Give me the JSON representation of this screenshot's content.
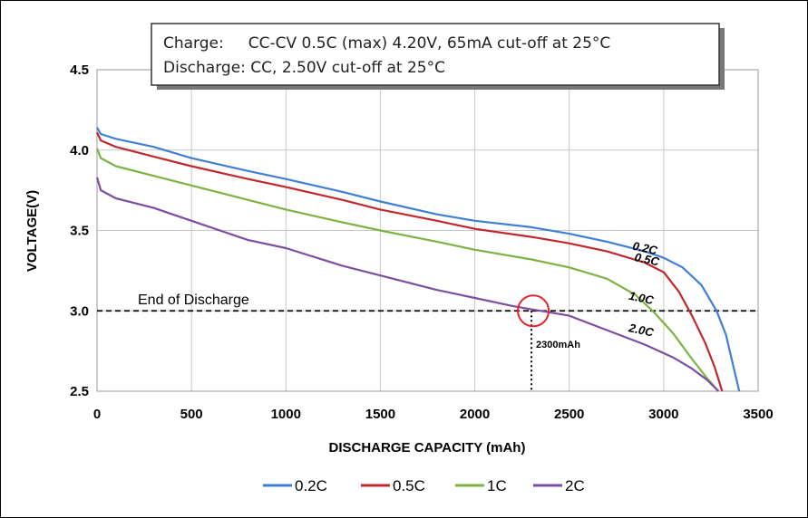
{
  "info_box": {
    "line1": "Charge:     CC-CV 0.5C (max) 4.20V, 65mA cut-off at 25°C",
    "line2": "Discharge: CC, 2.50V cut-off at 25°C"
  },
  "chart_data": {
    "type": "line",
    "xlabel": "DISCHARGE CAPACITY (mAh)",
    "ylabel": "VOLTAGE(V)",
    "xlim": [
      0,
      3500
    ],
    "ylim": [
      2.5,
      4.5
    ],
    "xticks": [
      "0",
      "500",
      "1000",
      "1500",
      "2000",
      "2500",
      "3000",
      "3500"
    ],
    "yticks": [
      "2.5",
      "3.0",
      "3.5",
      "4.0",
      "4.5"
    ],
    "grid": true,
    "legend_position": "bottom",
    "series": [
      {
        "name": "0.2C",
        "curve_label": "0.2C",
        "color": "#3f7fd4",
        "points": [
          [
            0,
            4.14
          ],
          [
            20,
            4.1
          ],
          [
            100,
            4.07
          ],
          [
            300,
            4.02
          ],
          [
            500,
            3.95
          ],
          [
            800,
            3.87
          ],
          [
            1000,
            3.82
          ],
          [
            1300,
            3.74
          ],
          [
            1500,
            3.68
          ],
          [
            1800,
            3.6
          ],
          [
            2000,
            3.56
          ],
          [
            2300,
            3.52
          ],
          [
            2500,
            3.48
          ],
          [
            2700,
            3.43
          ],
          [
            2900,
            3.37
          ],
          [
            3000,
            3.33
          ],
          [
            3100,
            3.27
          ],
          [
            3200,
            3.16
          ],
          [
            3280,
            3.0
          ],
          [
            3330,
            2.85
          ],
          [
            3370,
            2.65
          ],
          [
            3400,
            2.5
          ]
        ]
      },
      {
        "name": "0.5C",
        "curve_label": "0.5C",
        "color": "#c0282e",
        "points": [
          [
            0,
            4.11
          ],
          [
            20,
            4.06
          ],
          [
            100,
            4.02
          ],
          [
            300,
            3.96
          ],
          [
            500,
            3.9
          ],
          [
            800,
            3.82
          ],
          [
            1000,
            3.77
          ],
          [
            1300,
            3.69
          ],
          [
            1500,
            3.63
          ],
          [
            1800,
            3.56
          ],
          [
            2000,
            3.51
          ],
          [
            2300,
            3.46
          ],
          [
            2500,
            3.42
          ],
          [
            2700,
            3.37
          ],
          [
            2900,
            3.3
          ],
          [
            3000,
            3.24
          ],
          [
            3080,
            3.12
          ],
          [
            3150,
            2.97
          ],
          [
            3220,
            2.8
          ],
          [
            3270,
            2.65
          ],
          [
            3310,
            2.5
          ]
        ]
      },
      {
        "name": "1C",
        "curve_label": "1.0C",
        "color": "#7cb342",
        "points": [
          [
            0,
            4.01
          ],
          [
            20,
            3.95
          ],
          [
            100,
            3.9
          ],
          [
            300,
            3.84
          ],
          [
            500,
            3.78
          ],
          [
            800,
            3.69
          ],
          [
            1000,
            3.63
          ],
          [
            1300,
            3.55
          ],
          [
            1500,
            3.5
          ],
          [
            1800,
            3.43
          ],
          [
            2000,
            3.38
          ],
          [
            2300,
            3.32
          ],
          [
            2500,
            3.27
          ],
          [
            2700,
            3.2
          ],
          [
            2850,
            3.1
          ],
          [
            2950,
            2.99
          ],
          [
            3050,
            2.86
          ],
          [
            3150,
            2.7
          ],
          [
            3230,
            2.58
          ],
          [
            3290,
            2.5
          ]
        ]
      },
      {
        "name": "2C",
        "curve_label": "2.0C",
        "color": "#7e4ea0",
        "points": [
          [
            0,
            3.83
          ],
          [
            20,
            3.75
          ],
          [
            100,
            3.7
          ],
          [
            300,
            3.64
          ],
          [
            500,
            3.56
          ],
          [
            800,
            3.44
          ],
          [
            1000,
            3.39
          ],
          [
            1300,
            3.28
          ],
          [
            1500,
            3.22
          ],
          [
            1800,
            3.13
          ],
          [
            2000,
            3.08
          ],
          [
            2200,
            3.03
          ],
          [
            2350,
            3.0
          ],
          [
            2500,
            2.97
          ],
          [
            2700,
            2.88
          ],
          [
            2900,
            2.79
          ],
          [
            3050,
            2.71
          ],
          [
            3150,
            2.64
          ],
          [
            3230,
            2.57
          ],
          [
            3290,
            2.5
          ]
        ]
      }
    ],
    "annotations": {
      "end_of_discharge_label": "End of Discharge",
      "end_of_discharge_voltage": 3.0,
      "marker_capacity": 2300,
      "marker_label": "2300mAh"
    }
  }
}
